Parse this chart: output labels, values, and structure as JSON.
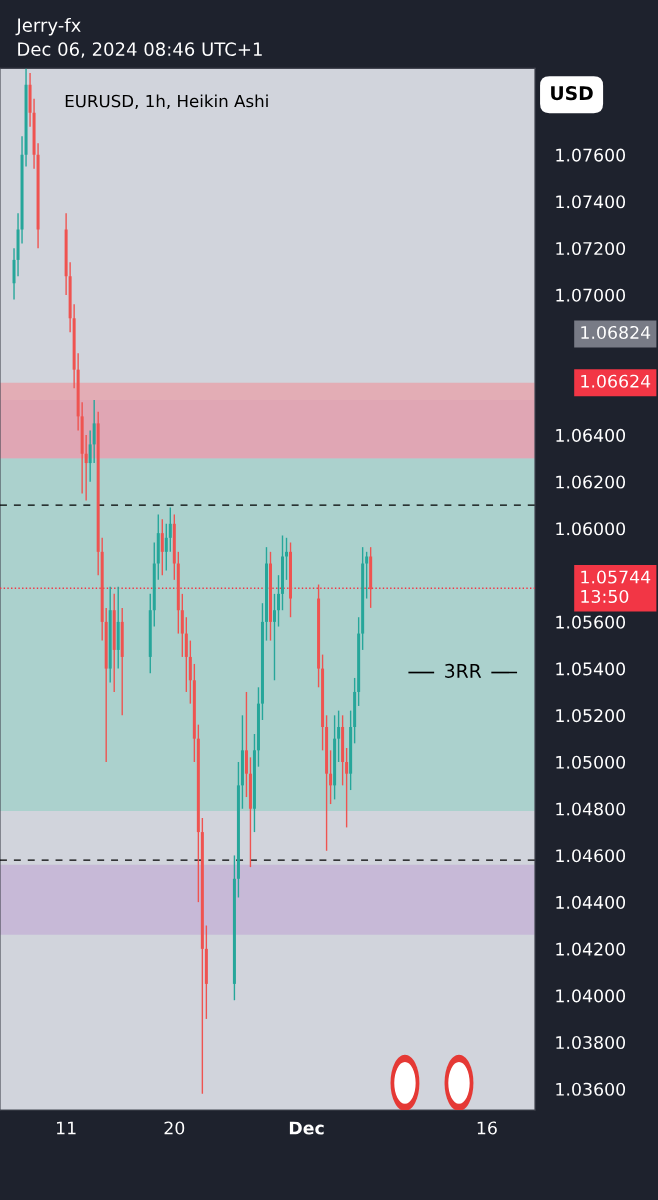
{
  "chart_data": {
    "type": "candlestick",
    "title": "Jerry-fx",
    "subtitle": "Dec 06, 2024 08:46 UTC+1",
    "ylabel": "USD",
    "x": [
      "2024-11-06T16:00",
      "2024-11-07T00:00",
      "2024-11-07T08:00",
      "2024-11-07T16:00",
      "2024-11-08T00:00",
      "2024-11-08T08:00",
      "2024-11-08T16:00",
      "2024-11-11T00:00",
      "2024-11-11T08:00",
      "2024-11-11T16:00",
      "2024-11-12T00:00",
      "2024-11-12T08:00",
      "2024-11-12T16:00",
      "2024-11-13T00:00",
      "2024-11-13T08:00",
      "2024-11-13T16:00",
      "2024-11-14T00:00",
      "2024-11-14T08:00",
      "2024-11-14T16:00",
      "2024-11-15T00:00",
      "2024-11-15T08:00",
      "2024-11-15T16:00",
      "2024-11-18T00:00",
      "2024-11-18T08:00",
      "2024-11-18T16:00",
      "2024-11-19T00:00",
      "2024-11-19T08:00",
      "2024-11-19T16:00",
      "2024-11-20T00:00",
      "2024-11-20T08:00",
      "2024-11-20T16:00",
      "2024-11-21T00:00",
      "2024-11-21T08:00",
      "2024-11-21T16:00",
      "2024-11-22T00:00",
      "2024-11-22T08:00",
      "2024-11-22T16:00",
      "2024-11-25T00:00",
      "2024-11-25T08:00",
      "2024-11-25T16:00",
      "2024-11-26T00:00",
      "2024-11-26T08:00",
      "2024-11-26T16:00",
      "2024-11-27T00:00",
      "2024-11-27T08:00",
      "2024-11-27T16:00",
      "2024-11-28T00:00",
      "2024-11-28T08:00",
      "2024-11-28T16:00",
      "2024-11-29T00:00",
      "2024-11-29T08:00",
      "2024-11-29T16:00",
      "2024-12-02T00:00",
      "2024-12-02T08:00",
      "2024-12-02T16:00",
      "2024-12-03T00:00",
      "2024-12-03T08:00",
      "2024-12-03T16:00",
      "2024-12-04T00:00",
      "2024-12-04T08:00",
      "2024-12-04T16:00",
      "2024-12-05T00:00",
      "2024-12-05T08:00",
      "2024-12-05T16:00",
      "2024-12-06T00:00",
      "2024-12-06T08:00"
    ],
    "ohlc": [
      [
        1.0705,
        1.072,
        1.0698,
        1.0715
      ],
      [
        1.0715,
        1.0735,
        1.0708,
        1.0728
      ],
      [
        1.0728,
        1.0768,
        1.0722,
        1.076
      ],
      [
        1.076,
        1.0797,
        1.0755,
        1.079
      ],
      [
        1.079,
        1.0795,
        1.0772,
        1.0778
      ],
      [
        1.0778,
        1.0784,
        1.0754,
        1.076
      ],
      [
        1.076,
        1.0765,
        1.072,
        1.0728
      ],
      [
        1.0728,
        1.0735,
        1.07,
        1.0708
      ],
      [
        1.0708,
        1.0714,
        1.0684,
        1.069
      ],
      [
        1.069,
        1.0696,
        1.066,
        1.0668
      ],
      [
        1.0668,
        1.0675,
        1.0642,
        1.0648
      ],
      [
        1.0648,
        1.0654,
        1.0615,
        1.0632
      ],
      [
        1.0632,
        1.064,
        1.0612,
        1.0628
      ],
      [
        1.0628,
        1.0642,
        1.062,
        1.0636
      ],
      [
        1.0636,
        1.0655,
        1.0628,
        1.0645
      ],
      [
        1.0645,
        1.065,
        1.058,
        1.059
      ],
      [
        1.059,
        1.0596,
        1.0552,
        1.056
      ],
      [
        1.056,
        1.0566,
        1.05,
        1.054
      ],
      [
        1.054,
        1.0575,
        1.0534,
        1.0565
      ],
      [
        1.0565,
        1.0572,
        1.053,
        1.0548
      ],
      [
        1.0548,
        1.0575,
        1.054,
        1.056
      ],
      [
        1.056,
        1.0566,
        1.052,
        1.0545
      ],
      [
        1.0545,
        1.0572,
        1.0538,
        1.0565
      ],
      [
        1.0565,
        1.0594,
        1.0558,
        1.0585
      ],
      [
        1.0585,
        1.0606,
        1.0578,
        1.0598
      ],
      [
        1.0598,
        1.0604,
        1.058,
        1.059
      ],
      [
        1.059,
        1.0602,
        1.0582,
        1.0596
      ],
      [
        1.0596,
        1.0609,
        1.059,
        1.0602
      ],
      [
        1.0602,
        1.0606,
        1.0578,
        1.0585
      ],
      [
        1.0585,
        1.059,
        1.0555,
        1.0565
      ],
      [
        1.0565,
        1.0572,
        1.0545,
        1.0555
      ],
      [
        1.0555,
        1.0562,
        1.053,
        1.0545
      ],
      [
        1.0545,
        1.0552,
        1.0525,
        1.0535
      ],
      [
        1.0535,
        1.0542,
        1.05,
        1.051
      ],
      [
        1.051,
        1.0516,
        1.044,
        1.047
      ],
      [
        1.047,
        1.0476,
        1.0358,
        1.042
      ],
      [
        1.042,
        1.043,
        1.039,
        1.0405
      ],
      [
        1.0405,
        1.046,
        1.0398,
        1.045
      ],
      [
        1.045,
        1.05,
        1.0442,
        1.049
      ],
      [
        1.049,
        1.052,
        1.048,
        1.0505
      ],
      [
        1.0505,
        1.053,
        1.0485,
        1.0495
      ],
      [
        1.0495,
        1.0502,
        1.0455,
        1.048
      ],
      [
        1.048,
        1.0512,
        1.047,
        1.0505
      ],
      [
        1.0505,
        1.0532,
        1.0498,
        1.0525
      ],
      [
        1.0525,
        1.0568,
        1.0518,
        1.056
      ],
      [
        1.056,
        1.0592,
        1.0552,
        1.0585
      ],
      [
        1.0585,
        1.059,
        1.0552,
        1.056
      ],
      [
        1.056,
        1.0572,
        1.0535,
        1.0565
      ],
      [
        1.0565,
        1.058,
        1.0558,
        1.0572
      ],
      [
        1.0572,
        1.0597,
        1.0565,
        1.0588
      ],
      [
        1.0588,
        1.0596,
        1.0578,
        1.059
      ],
      [
        1.059,
        1.0594,
        1.0562,
        1.057
      ],
      [
        1.057,
        1.0576,
        1.0532,
        1.054
      ],
      [
        1.054,
        1.0546,
        1.0505,
        1.0515
      ],
      [
        1.0515,
        1.052,
        1.0462,
        1.0495
      ],
      [
        1.0495,
        1.0505,
        1.0482,
        1.049
      ],
      [
        1.049,
        1.052,
        1.0484,
        1.051
      ],
      [
        1.051,
        1.0522,
        1.05,
        1.0515
      ],
      [
        1.0515,
        1.052,
        1.049,
        1.05
      ],
      [
        1.05,
        1.0506,
        1.0472,
        1.0495
      ],
      [
        1.0495,
        1.0522,
        1.0488,
        1.0515
      ],
      [
        1.0515,
        1.0536,
        1.0508,
        1.053
      ],
      [
        1.053,
        1.0562,
        1.0524,
        1.0555
      ],
      [
        1.0555,
        1.0592,
        1.0548,
        1.0585
      ],
      [
        1.0585,
        1.059,
        1.057,
        1.0588
      ],
      [
        1.0588,
        1.0592,
        1.0566,
        1.0574
      ]
    ],
    "colors": [
      "#26a69a",
      "#26a69a",
      "#26a69a",
      "#26a69a",
      "#ef5350",
      "#ef5350",
      "#ef5350",
      "#ef5350",
      "#ef5350",
      "#ef5350",
      "#ef5350",
      "#ef5350",
      "#ef5350",
      "#26a69a",
      "#26a69a",
      "#ef5350",
      "#ef5350",
      "#ef5350",
      "#26a69a",
      "#ef5350",
      "#26a69a",
      "#ef5350",
      "#26a69a",
      "#26a69a",
      "#26a69a",
      "#ef5350",
      "#26a69a",
      "#26a69a",
      "#ef5350",
      "#ef5350",
      "#ef5350",
      "#ef5350",
      "#ef5350",
      "#ef5350",
      "#ef5350",
      "#ef5350",
      "#ef5350",
      "#26a69a",
      "#26a69a",
      "#26a69a",
      "#ef5350",
      "#ef5350",
      "#26a69a",
      "#26a69a",
      "#26a69a",
      "#26a69a",
      "#ef5350",
      "#26a69a",
      "#26a69a",
      "#26a69a",
      "#26a69a",
      "#ef5350",
      "#ef5350",
      "#ef5350",
      "#ef5350",
      "#ef5350",
      "#26a69a",
      "#26a69a",
      "#ef5350",
      "#ef5350",
      "#26a69a",
      "#26a69a",
      "#26a69a",
      "#26a69a",
      "#26a69a",
      "#ef5350"
    ],
    "xlim": [
      "2024-11-05T12:00",
      "2024-12-20"
    ],
    "xticks": [
      {
        "value": "2024-11-11",
        "label": "11"
      },
      {
        "value": "2024-11-20",
        "label": "20"
      },
      {
        "value": "2024-12-01",
        "label": "Dec"
      },
      {
        "value": "2024-12-16",
        "label": "16"
      }
    ],
    "ylim": [
      1.0351,
      1.0797
    ],
    "yticks": [
      {
        "value": 1.036,
        "label": "1.03600"
      },
      {
        "value": 1.038,
        "label": "1.03800"
      },
      {
        "value": 1.04,
        "label": "1.04000"
      },
      {
        "value": 1.042,
        "label": "1.04200"
      },
      {
        "value": 1.044,
        "label": "1.04400"
      },
      {
        "value": 1.046,
        "label": "1.04600"
      },
      {
        "value": 1.048,
        "label": "1.04800"
      },
      {
        "value": 1.05,
        "label": "1.05000"
      },
      {
        "value": 1.052,
        "label": "1.05200"
      },
      {
        "value": 1.054,
        "label": "1.05400"
      },
      {
        "value": 1.056,
        "label": "1.05600"
      },
      {
        "value": 1.06,
        "label": "1.06000"
      },
      {
        "value": 1.062,
        "label": "1.06200"
      },
      {
        "value": 1.064,
        "label": "1.06400"
      },
      {
        "value": 1.07,
        "label": "1.07000"
      },
      {
        "value": 1.072,
        "label": "1.07200"
      },
      {
        "value": 1.074,
        "label": "1.07400"
      },
      {
        "value": 1.076,
        "label": "1.07600"
      }
    ],
    "ref_lines": [
      {
        "axis": "y",
        "value": 1.061,
        "color": "#000000",
        "line_style": "dashed"
      },
      {
        "axis": "y",
        "value": 1.0458,
        "color": "#000000",
        "line_style": "dashed"
      },
      {
        "axis": "y",
        "value": 1.05744,
        "label": "1.05744\n13:50",
        "color": "#f23645",
        "line_style": "dotted"
      }
    ],
    "bands": [
      {
        "axis": "y",
        "from": 1.063,
        "to": 1.0655,
        "color": "#c3b0d6"
      },
      {
        "axis": "y",
        "from": 1.0426,
        "to": 1.0456,
        "color": "#c3b0d6"
      },
      {
        "axis": "y",
        "from": 1.063,
        "to": 1.06624,
        "color": "#e8a0a8",
        "label": "1.06624"
      },
      {
        "axis": "y",
        "from": 1.0479,
        "to": 1.063,
        "color": "#9ed0c8"
      }
    ],
    "annotations": [
      "EURUSD, 1h, Heikin Ashi",
      "3RR",
      "1.06824"
    ],
    "grid": false,
    "legend": false
  }
}
